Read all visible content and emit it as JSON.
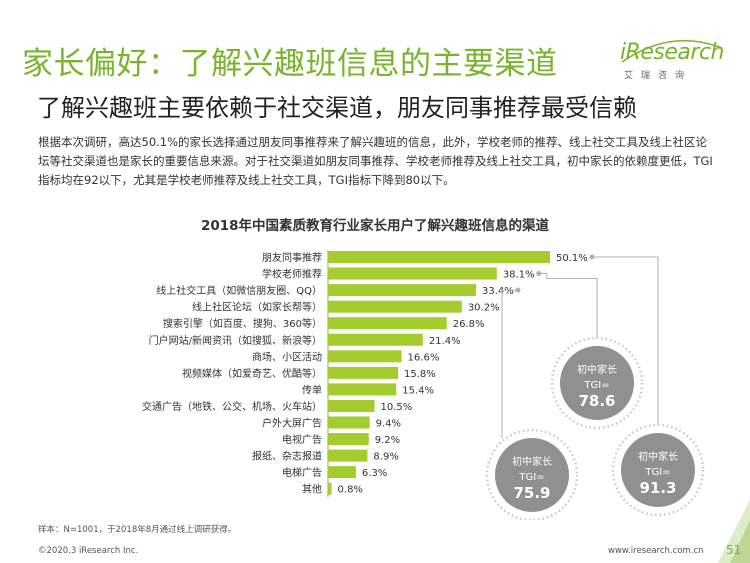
{
  "header": {
    "title": "家长偏好：了解兴趣班信息的主要渠道",
    "subtitle": "了解兴趣班主要依赖于社交渠道，朋友同事推荐最受信赖",
    "logo_word": "iResearch",
    "logo_sub": "艾瑞咨询"
  },
  "intro": "根据本次调研，高达50.1%的家长选择通过朋友同事推荐来了解兴趣班的信息，此外，学校老师的推荐、线上社交工具及线上社区论坛等社交渠道也是家长的重要信息来源。对于社交渠道如朋友同事推荐、学校老师推荐及线上社交工具，初中家长的依赖度更低，TGI指标均在92以下，尤其是学校老师推荐及线上社交工具，TGI指标下降到80以下。",
  "colors": {
    "brand": "#7ab32d",
    "bar": "#a5cc2f",
    "circle_fill": "#909090",
    "connector": "#b0b0b0"
  },
  "chart_data": {
    "type": "bar",
    "orientation": "horizontal",
    "title": "2018年中国素质教育行业家长用户了解兴趣班信息的渠道",
    "categories": [
      "朋友同事推荐",
      "学校老师推荐",
      "线上社交工具（如微信朋友圈、QQ）",
      "线上社区论坛（如家长帮等）",
      "搜索引擎（如百度、搜狗、360等）",
      "门户网站/新闻资讯（如搜狐、新浪等）",
      "商场、小区活动",
      "视频媒体（如爱奇艺、优酷等）",
      "传单",
      "交通广告（地铁、公交、机场、火车站）",
      "户外大屏广告",
      "电视广告",
      "报纸、杂志报道",
      "电梯广告",
      "其他"
    ],
    "values": [
      50.1,
      38.1,
      33.4,
      30.2,
      26.8,
      21.4,
      16.6,
      15.8,
      15.4,
      10.5,
      9.4,
      9.2,
      8.9,
      6.3,
      0.8
    ],
    "value_labels": [
      "50.1%",
      "38.1%",
      "33.4%",
      "30.2%",
      "26.8%",
      "21.4%",
      "16.6%",
      "15.8%",
      "15.4%",
      "10.5%",
      "9.4%",
      "9.2%",
      "8.9%",
      "6.3%",
      "0.8%"
    ],
    "xlim": [
      0,
      50.1
    ],
    "grid": false,
    "annotations": [
      {
        "target": "学校老师推荐",
        "group": "初中家长",
        "metric": "TGI=",
        "value": "78.6"
      },
      {
        "target": "朋友同事推荐",
        "group": "初中家长",
        "metric": "TGI=",
        "value": "91.3"
      },
      {
        "target": "线上社交工具（如微信朋友圈、QQ）",
        "group": "初中家长",
        "metric": "TGI=",
        "value": "75.9"
      }
    ]
  },
  "footer": {
    "note": "样本：N=1001，于2018年8月通过线上调研获得。",
    "copyright": "©2020.3 iResearch Inc.",
    "site": "www.iresearch.com.cn",
    "page": "51"
  }
}
